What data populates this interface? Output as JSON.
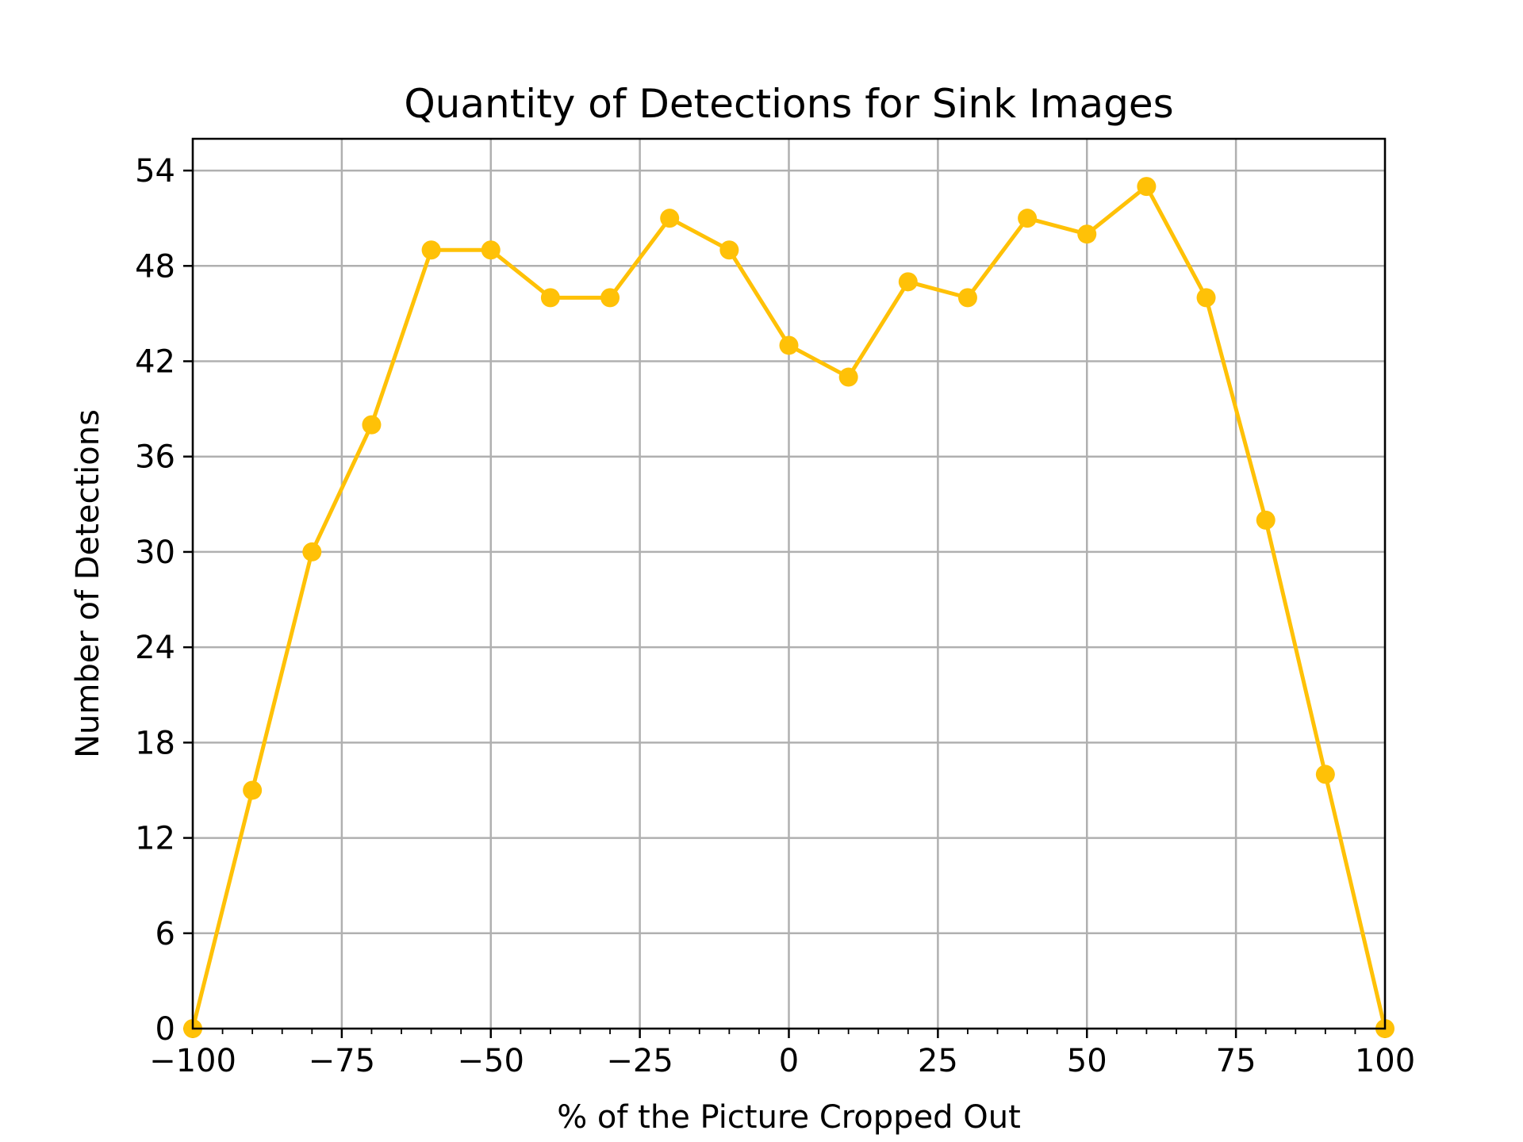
{
  "chart_data": {
    "type": "line",
    "title": "Quantity of Detections for Sink Images",
    "xlabel": "% of the Picture Cropped Out",
    "ylabel": "Number of Detections",
    "xlim": [
      -100,
      100
    ],
    "ylim": [
      0,
      56
    ],
    "x_ticks": [
      -100,
      -75,
      -50,
      -25,
      0,
      25,
      50,
      75,
      100
    ],
    "x_tick_labels": [
      "−100",
      "−75",
      "−50",
      "−25",
      "0",
      "25",
      "50",
      "75",
      "100"
    ],
    "y_ticks": [
      0,
      6,
      12,
      18,
      24,
      30,
      36,
      42,
      48,
      54
    ],
    "y_tick_labels": [
      "0",
      "6",
      "12",
      "18",
      "24",
      "30",
      "36",
      "42",
      "48",
      "54"
    ],
    "grid": true,
    "series": [
      {
        "color": "#ffc107",
        "marker": "circle",
        "x": [
          -100,
          -90,
          -80,
          -70,
          -60,
          -50,
          -40,
          -30,
          -20,
          -10,
          0,
          10,
          20,
          30,
          40,
          50,
          60,
          70,
          80,
          90,
          100
        ],
        "y": [
          0,
          15,
          30,
          38,
          49,
          49,
          46,
          46,
          51,
          49,
          43,
          41,
          47,
          46,
          51,
          50,
          53,
          46,
          32,
          16,
          0
        ]
      }
    ]
  }
}
